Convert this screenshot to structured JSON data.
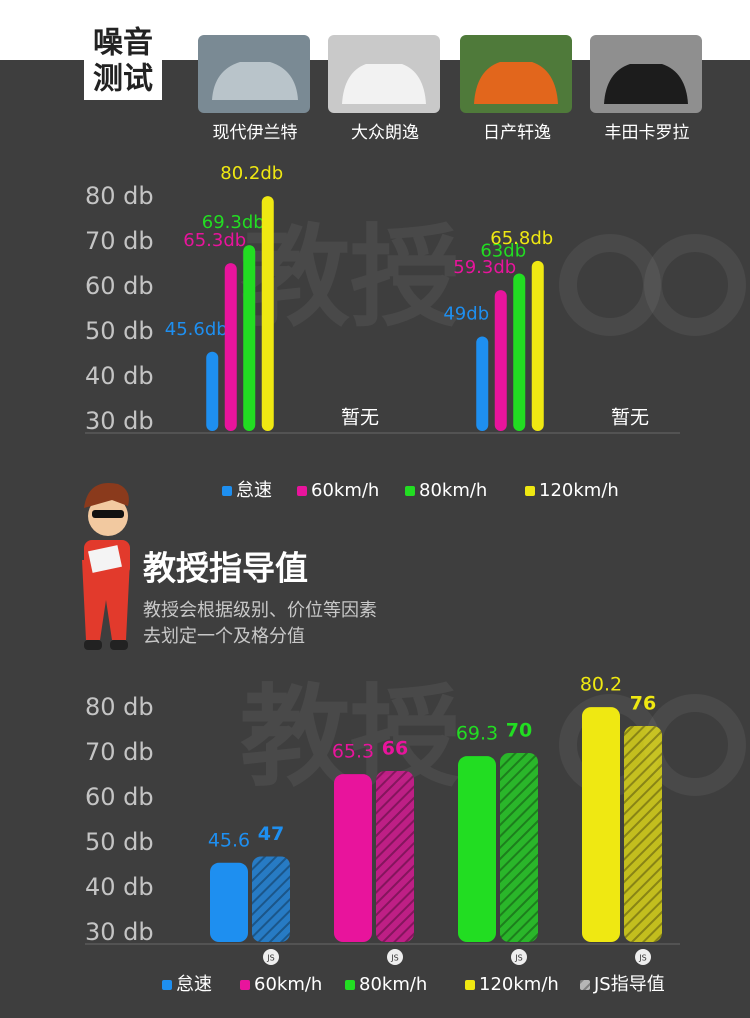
{
  "header": {
    "title_lines": [
      "噪音",
      "测试"
    ],
    "cars": [
      "现代伊兰特",
      "大众朗逸",
      "日产轩逸",
      "丰田卡罗拉"
    ]
  },
  "watermark": "教授",
  "guide": {
    "title": "教授指导值",
    "description": [
      "教授会根据级别、价位等因素",
      "去划定一个及格分值"
    ]
  },
  "chart_data": [
    {
      "type": "bar",
      "categories": [
        "现代伊兰特",
        "大众朗逸",
        "日产轩逸",
        "丰田卡罗拉"
      ],
      "missing_label": "暂无",
      "series": [
        {
          "name": "怠速",
          "color": "#1e8ff0",
          "values": [
            45.6,
            null,
            49,
            null
          ],
          "value_labels": [
            "45.6db",
            null,
            "49db",
            null
          ]
        },
        {
          "name": "60km/h",
          "color": "#e8149c",
          "values": [
            65.3,
            null,
            59.3,
            null
          ],
          "value_labels": [
            "65.3db",
            null,
            "59.3db",
            null
          ]
        },
        {
          "name": "80km/h",
          "color": "#22dd22",
          "values": [
            69.3,
            null,
            63,
            null
          ],
          "value_labels": [
            "69.3db",
            null,
            "63db",
            null
          ]
        },
        {
          "name": "120km/h",
          "color": "#efe812",
          "values": [
            80.2,
            null,
            65.8,
            null
          ],
          "value_labels": [
            "80.2db",
            null,
            "65.8db",
            null
          ]
        }
      ],
      "ylim": [
        28,
        82
      ],
      "yticks": [
        {
          "value": 30,
          "label": "30 db"
        },
        {
          "value": 40,
          "label": "40 db"
        },
        {
          "value": 50,
          "label": "50 db"
        },
        {
          "value": 60,
          "label": "60 db"
        },
        {
          "value": 70,
          "label": "70 db"
        },
        {
          "value": 80,
          "label": "80 db"
        }
      ],
      "grid": false
    },
    {
      "type": "bar",
      "categories": [
        "怠速",
        "60km/h",
        "80km/h",
        "120km/h"
      ],
      "colors": [
        "#1e8ff0",
        "#e8149c",
        "#22dd22",
        "#efe812"
      ],
      "badge": "JS",
      "series": [
        {
          "values": [
            45.6,
            65.3,
            69.3,
            80.2
          ]
        },
        {
          "name": "JS指导值",
          "hatched": true,
          "values": [
            47,
            66,
            70,
            76
          ]
        }
      ],
      "ylim": [
        28,
        82
      ],
      "yticks": [
        {
          "value": 30,
          "label": "30 db"
        },
        {
          "value": 40,
          "label": "40 db"
        },
        {
          "value": 50,
          "label": "50 db"
        },
        {
          "value": 60,
          "label": "60 db"
        },
        {
          "value": 70,
          "label": "70 db"
        },
        {
          "value": 80,
          "label": "80 db"
        }
      ],
      "grid": false
    }
  ]
}
